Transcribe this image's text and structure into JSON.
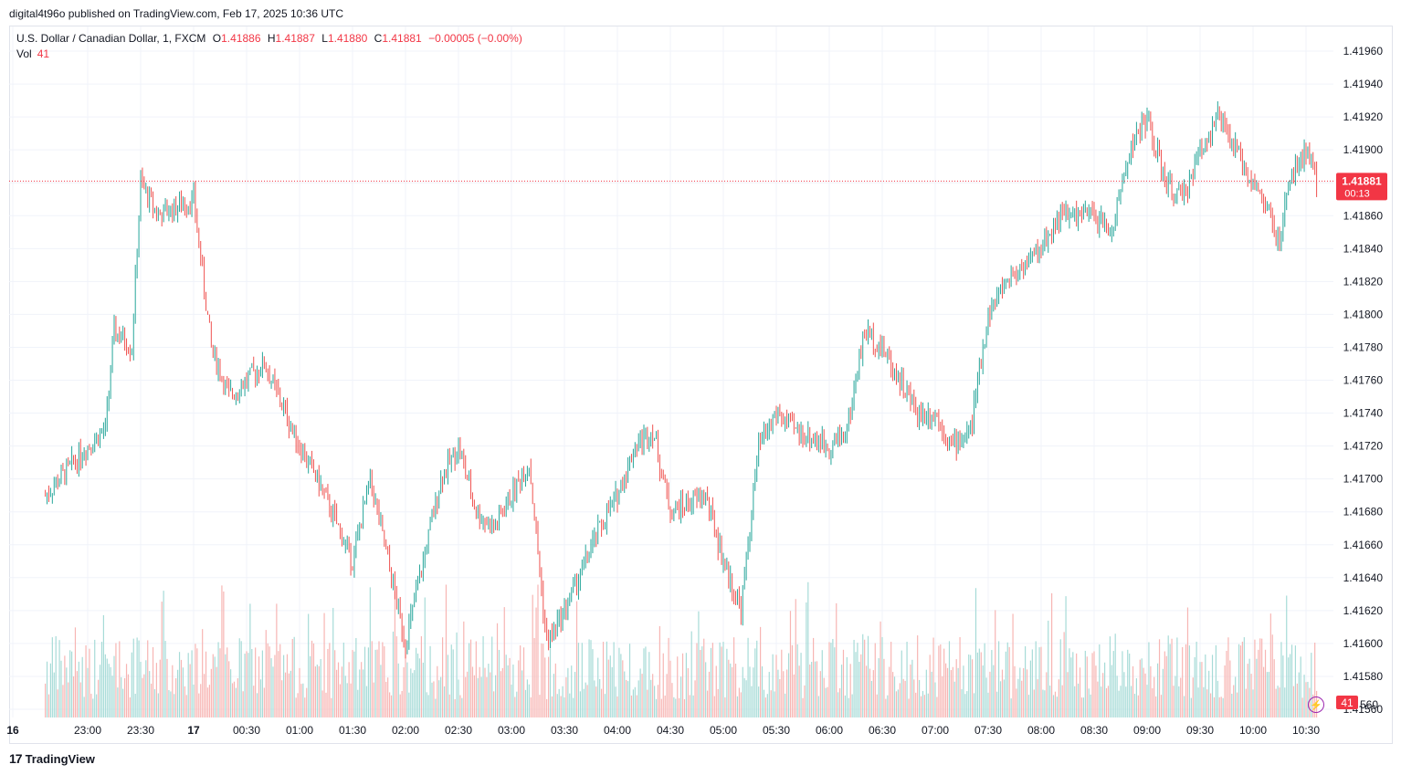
{
  "header": {
    "published": "digital4t96o published on TradingView.com, Feb 17, 2025 10:36 UTC"
  },
  "legend": {
    "symbol": "U.S. Dollar / Canadian Dollar, 1, FXCM",
    "o_label": "O",
    "o_value": "1.41886",
    "h_label": "H",
    "h_value": "1.41887",
    "l_label": "L",
    "l_value": "1.41880",
    "c_label": "C",
    "c_value": "1.41881",
    "change": "−0.00005 (−0.00%)",
    "vol_label": "Vol",
    "vol_value": "41"
  },
  "footer": {
    "brand": "TradingView",
    "logo": "17"
  },
  "colors": {
    "up": "#26a69a",
    "down": "#ef5350",
    "up_vol": "#a6dbd7",
    "down_vol": "#f7b5b3",
    "grid": "#f0f3fa",
    "price_tag": "#f23645"
  },
  "chart_data": {
    "type": "line",
    "title": "U.S. Dollar / Canadian Dollar, 1, FXCM",
    "xlabel": "",
    "ylabel": "",
    "ylim": [
      1.41555,
      1.41975
    ],
    "grid": true,
    "y_ticks": [
      "1.41960",
      "1.41940",
      "1.41920",
      "1.41900",
      "1.41880",
      "1.41860",
      "1.41840",
      "1.41820",
      "1.41800",
      "1.41780",
      "1.41760",
      "1.41740",
      "1.41720",
      "1.41700",
      "1.41680",
      "1.41660",
      "1.41640",
      "1.41620",
      "1.41600",
      "1.41580",
      "1.41560"
    ],
    "x_ticks": [
      "16",
      "23:00",
      "23:30",
      "17",
      "00:30",
      "01:00",
      "01:30",
      "02:00",
      "02:30",
      "03:00",
      "03:30",
      "04:00",
      "04:30",
      "05:00",
      "05:30",
      "06:00",
      "06:30",
      "07:00",
      "07:30",
      "08:00",
      "08:30",
      "09:00",
      "09:30",
      "10:00",
      "10:30"
    ],
    "series": [
      {
        "name": "USD/CAD",
        "x": [
          "22:36",
          "23:00",
          "23:10",
          "23:15",
          "23:25",
          "23:30",
          "23:40",
          "00:00",
          "00:10",
          "00:20",
          "00:40",
          "01:00",
          "01:10",
          "01:30",
          "01:40",
          "02:00",
          "02:20",
          "02:30",
          "02:40",
          "02:50",
          "03:10",
          "03:20",
          "03:30",
          "03:50",
          "04:00",
          "04:10",
          "04:20",
          "04:30",
          "04:50",
          "05:00",
          "05:10",
          "05:20",
          "05:30",
          "05:40",
          "06:00",
          "06:10",
          "06:20",
          "06:30",
          "06:40",
          "06:50",
          "07:00",
          "07:10",
          "07:20",
          "07:30",
          "07:40",
          "08:00",
          "08:10",
          "08:30",
          "08:40",
          "08:50",
          "09:00",
          "09:10",
          "09:20",
          "09:30",
          "09:40",
          "09:50",
          "10:00",
          "10:10",
          "10:15",
          "10:20",
          "10:30",
          "10:36"
        ],
        "values": [
          1.4169,
          1.4172,
          1.4173,
          1.4179,
          1.4178,
          1.4188,
          1.4186,
          1.4187,
          1.4178,
          1.4175,
          1.4177,
          1.4172,
          1.417,
          1.4165,
          1.417,
          1.416,
          1.417,
          1.4172,
          1.4168,
          1.4167,
          1.4171,
          1.416,
          1.4162,
          1.4167,
          1.4169,
          1.4172,
          1.4173,
          1.4168,
          1.4169,
          1.4165,
          1.4162,
          1.4172,
          1.4174,
          1.4173,
          1.4172,
          1.4173,
          1.4179,
          1.4178,
          1.4176,
          1.4174,
          1.4174,
          1.4172,
          1.4173,
          1.418,
          1.4182,
          1.4184,
          1.4186,
          1.4186,
          1.4185,
          1.419,
          1.4192,
          1.4188,
          1.4187,
          1.419,
          1.4192,
          1.419,
          1.4188,
          1.4186,
          1.4184,
          1.4188,
          1.419,
          1.41881
        ]
      }
    ],
    "last_price": "1.41881",
    "countdown": "00:13",
    "last_volume": "41",
    "y_extra_label": "560"
  }
}
